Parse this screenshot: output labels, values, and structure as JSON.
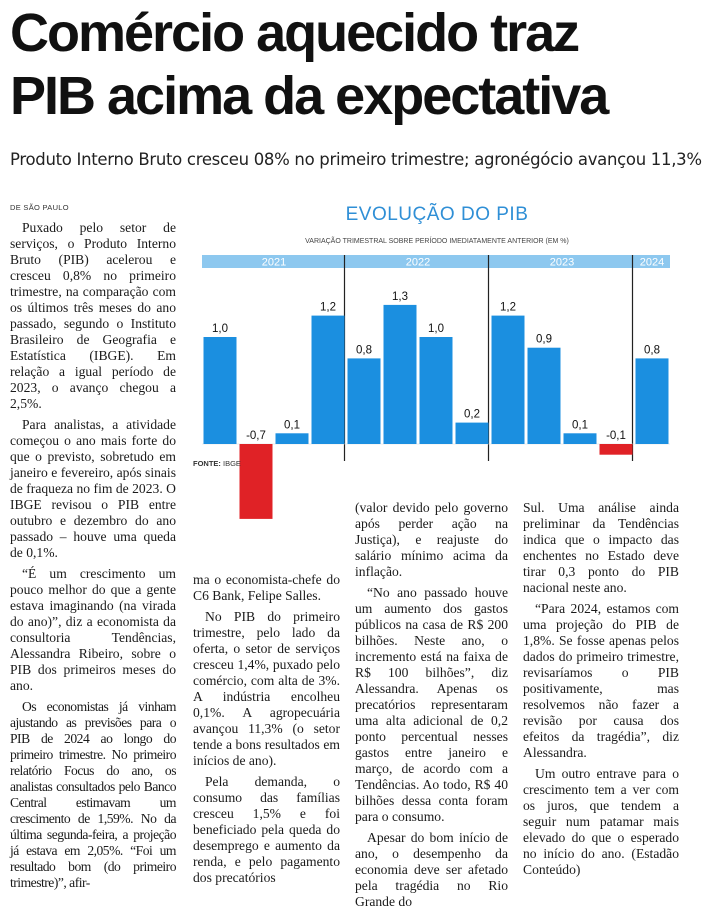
{
  "article": {
    "headline_line1": "Comércio aquecido traz",
    "headline_line2": "PIB acima da expectativa",
    "deck": "Produto Interno Bruto cresceu 08% no primeiro trimestre; agronégócio avançou 11,3%",
    "dateline": "DE SÃO PAULO",
    "col1": [
      "Puxado pelo setor de serviços, o Produto Interno Bruto (PIB) acelerou e cresceu 0,8% no primeiro trimestre, na comparação com os últimos três meses do ano passado, segundo o Instituto Brasileiro de Geografia e Estatística (IBGE). Em relação a igual período de 2023, o avanço chegou a 2,5%.",
      "Para analistas, a atividade começou o ano mais forte do que o previsto, sobretudo em janeiro e fevereiro, após sinais de fraqueza no fim de 2023. O IBGE revisou o PIB entre outubro e dezembro do ano passado – houve uma queda de 0,1%.",
      "“É um crescimento um pouco melhor do que a gente estava imaginando (na virada do ano)”, diz a economista da consultoria Tendências, Alessandra Ribeiro, sobre o PIB dos primeiros meses do ano.",
      "Os economistas já vinham ajustando as previsões para o PIB de 2024 ao longo do primeiro trimestre. No primeiro relatório Focus do ano, os analistas consultados pelo Banco Central estimavam um crescimento de 1,59%. No da última segunda-feira, a projeção já estava em 2,05%. “Foi um resultado bom (do primeiro trimestre)”, afir-"
    ],
    "col2": [
      "ma o economista-chefe do C6 Bank, Felipe Salles.",
      "No PIB do primeiro trimestre, pelo lado da oferta, o setor de serviços cresceu 1,4%, puxado pelo comércio, com alta de 3%. A indústria encolheu 0,1%. A agropecuária avançou 11,3% (o setor tende a bons resultados em inícios de ano).",
      "Pela demanda, o consumo das famílias cresceu 1,5% e foi beneficiado pela queda do desemprego e aumento da renda, e pelo pagamento dos precatórios"
    ],
    "col3": [
      "(valor devido pelo governo após perder ação na Justiça), e reajuste do salário mínimo acima da inflação.",
      "“No ano passado houve um aumento dos gastos públicos na casa de R$ 200 bilhões. Neste ano, o incremento está na faixa de R$ 100 bilhões”, diz Alessandra. Apenas os precatórios representaram uma alta adicional de 0,2 ponto percentual nesses gastos entre janeiro e março, de acordo com a Tendências. Ao todo, R$ 40 bilhões dessa conta foram para o consumo.",
      "Apesar do bom início de ano, o desempenho da economia deve ser afetado pela tragédia no Rio Grande do"
    ],
    "col4": [
      "Sul. Uma análise ainda preliminar da Tendências indica que o impacto das enchentes no Estado deve tirar 0,3 ponto do PIB nacional neste ano.",
      "“Para 2024, estamos com uma projeção do PIB de 1,8%. Se fosse apenas pelos dados do primeiro trimestre, revisaríamos o PIB positivamente, mas resolvemos não fazer a revisão por causa dos efeitos da tragédia”, diz Alessandra.",
      "Um outro entrave para o crescimento tem a ver com os juros, que tendem a seguir num patamar mais elevado do que o esperado no início do ano. (Estadão Conteúdo)"
    ]
  },
  "colors": {
    "positive": "#1b8fe0",
    "negative": "#e02226",
    "year_band": "#8dc8ef",
    "title": "#2f8fd6"
  },
  "chart_data": {
    "type": "bar",
    "title": "EVOLUÇÃO DO PIB",
    "subtitle": "VARIAÇÃO TRIMESTRAL SOBRE PERÍODO IMEDIATAMENTE ANTERIOR (EM %)",
    "source_label": "FONTE:",
    "source_value": "IBGE",
    "years": [
      {
        "label": "2021",
        "quarters": 4
      },
      {
        "label": "2022",
        "quarters": 4
      },
      {
        "label": "2023",
        "quarters": 4
      },
      {
        "label": "2024",
        "quarters": 1
      }
    ],
    "values": [
      1.0,
      -0.7,
      0.1,
      1.2,
      0.8,
      1.3,
      1.0,
      0.2,
      1.2,
      0.9,
      0.1,
      -0.1,
      0.8
    ],
    "labels": [
      "1,0",
      "-0,7",
      "0,1",
      "1,2",
      "0,8",
      "1,3",
      "1,0",
      "0,2",
      "1,2",
      "0,9",
      "0,1",
      "-0,1",
      "0,8"
    ],
    "ylim": [
      -0.7,
      1.3
    ]
  }
}
